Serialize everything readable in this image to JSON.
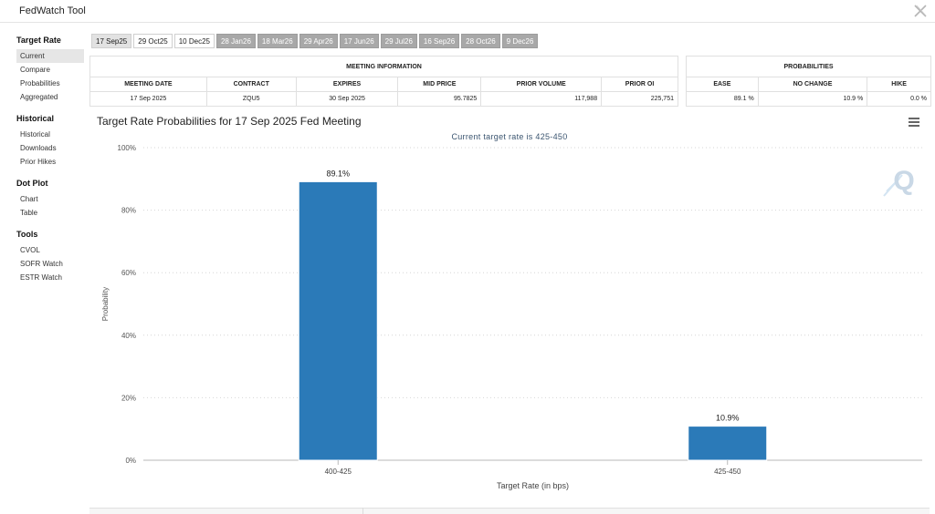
{
  "app": {
    "title": "FedWatch Tool"
  },
  "sidebar": {
    "groups": [
      {
        "heading": "Target Rate",
        "items": [
          {
            "label": "Current",
            "active": true
          },
          {
            "label": "Compare"
          },
          {
            "label": "Probabilities"
          },
          {
            "label": "Aggregated"
          }
        ]
      },
      {
        "heading": "Historical",
        "items": [
          {
            "label": "Historical"
          },
          {
            "label": "Downloads"
          },
          {
            "label": "Prior Hikes"
          }
        ]
      },
      {
        "heading": "Dot Plot",
        "items": [
          {
            "label": "Chart"
          },
          {
            "label": "Table"
          }
        ]
      },
      {
        "heading": "Tools",
        "items": [
          {
            "label": "CVOL"
          },
          {
            "label": "SOFR Watch"
          },
          {
            "label": "ESTR Watch"
          }
        ]
      }
    ]
  },
  "meeting_tabs": [
    {
      "label": "17 Sep25",
      "state": "selected"
    },
    {
      "label": "29 Oct25",
      "state": "normal"
    },
    {
      "label": "10 Dec25",
      "state": "normal"
    },
    {
      "label": "28 Jan26",
      "state": "future"
    },
    {
      "label": "18 Mar26",
      "state": "future"
    },
    {
      "label": "29 Apr26",
      "state": "future"
    },
    {
      "label": "17 Jun26",
      "state": "future"
    },
    {
      "label": "29 Jul26",
      "state": "future"
    },
    {
      "label": "16 Sep26",
      "state": "future"
    },
    {
      "label": "28 Oct26",
      "state": "future"
    },
    {
      "label": "9 Dec26",
      "state": "future"
    }
  ],
  "meeting_info": {
    "heading": "MEETING INFORMATION",
    "columns": [
      "MEETING DATE",
      "CONTRACT",
      "EXPIRES",
      "MID PRICE",
      "PRIOR VOLUME",
      "PRIOR OI"
    ],
    "row": [
      "17 Sep 2025",
      "ZQU5",
      "30 Sep 2025",
      "95.7825",
      "117,988",
      "225,751"
    ]
  },
  "probabilities": {
    "heading": "PROBABILITIES",
    "columns": [
      "EASE",
      "NO CHANGE",
      "HIKE"
    ],
    "row": [
      "89.1 %",
      "10.9 %",
      "0.0 %"
    ]
  },
  "chart": {
    "title": "Target Rate Probabilities for 17 Sep 2025 Fed Meeting",
    "subtitle": "Current target rate is 425-450",
    "watermark": "Q",
    "bar_color": "#2b7ab8"
  },
  "chart_data": {
    "type": "bar",
    "categories": [
      "400-425",
      "425-450"
    ],
    "values": [
      89.1,
      10.9
    ],
    "data_labels": [
      "89.1%",
      "10.9%"
    ],
    "xlabel": "Target Rate (in bps)",
    "ylabel": "Probability",
    "ylim": [
      0,
      100
    ],
    "yticks": [
      "0%",
      "20%",
      "40%",
      "60%",
      "80%",
      "100%"
    ],
    "grid": true
  }
}
